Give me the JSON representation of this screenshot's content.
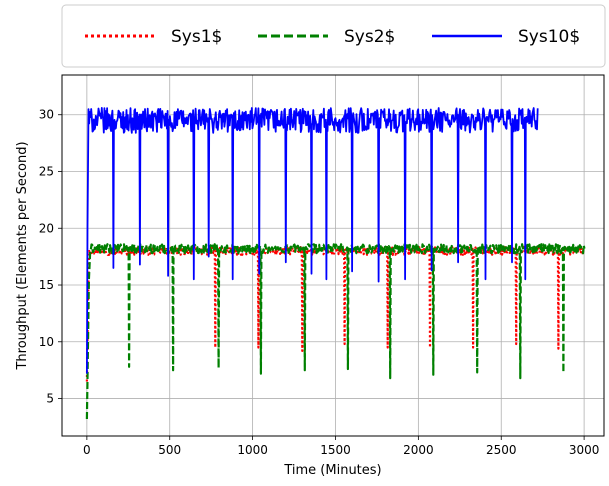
{
  "chart_data": {
    "type": "line",
    "title": "",
    "xlabel": "Time (Minutes)",
    "ylabel": "Throughput (Elements per Second)",
    "xlim": [
      -150,
      3120
    ],
    "ylim": [
      1.7,
      33.5
    ],
    "xticks": [
      0,
      500,
      1000,
      1500,
      2000,
      2500,
      3000
    ],
    "yticks": [
      5,
      10,
      15,
      20,
      25,
      30
    ],
    "grid": true,
    "legend_position": "top-center, above plot",
    "series": [
      {
        "name": "Sys1$",
        "color": "#ff0000",
        "style": "dotted",
        "baseline": 18.0,
        "noise": 0.35,
        "x_start": 0,
        "x_end": 3000,
        "startup": [
          [
            0,
            6.5
          ],
          [
            6,
            13.0
          ],
          [
            14,
            18.0
          ]
        ],
        "dips": [
          [
            775,
            9.5
          ],
          [
            1035,
            9.5
          ],
          [
            1300,
            9.2
          ],
          [
            1555,
            9.8
          ],
          [
            1815,
            9.5
          ],
          [
            2070,
            9.5
          ],
          [
            2330,
            9.5
          ],
          [
            2590,
            9.8
          ],
          [
            2845,
            9.4
          ]
        ]
      },
      {
        "name": "Sys2$",
        "color": "#008000",
        "style": "dashed",
        "baseline": 18.2,
        "noise": 0.4,
        "x_start": 0,
        "x_end": 3000,
        "startup": [
          [
            0,
            3.2
          ],
          [
            5,
            8.0
          ],
          [
            12,
            15.5
          ],
          [
            20,
            18.0
          ]
        ],
        "dips": [
          [
            255,
            7.8
          ],
          [
            520,
            7.5
          ],
          [
            795,
            7.7
          ],
          [
            1050,
            7.2
          ],
          [
            1315,
            7.5
          ],
          [
            1575,
            7.6
          ],
          [
            1830,
            6.8
          ],
          [
            2090,
            7.1
          ],
          [
            2355,
            7.3
          ],
          [
            2615,
            6.8
          ],
          [
            2875,
            7.3
          ]
        ]
      },
      {
        "name": "Sys10$",
        "color": "#0000ff",
        "style": "solid",
        "baseline": 29.5,
        "noise": 1.1,
        "x_start": 0,
        "x_end": 2720,
        "startup": [
          [
            0,
            7.2
          ],
          [
            4,
            20.0
          ],
          [
            10,
            30.5
          ]
        ],
        "dips": [
          [
            160,
            16.5
          ],
          [
            320,
            16.8
          ],
          [
            490,
            15.8
          ],
          [
            645,
            15.5
          ],
          [
            735,
            17.5
          ],
          [
            880,
            15.5
          ],
          [
            1040,
            16.0
          ],
          [
            1200,
            17.0
          ],
          [
            1355,
            16.0
          ],
          [
            1445,
            15.5
          ],
          [
            1600,
            16.2
          ],
          [
            1760,
            15.3
          ],
          [
            1920,
            15.5
          ],
          [
            2080,
            16.3
          ],
          [
            2240,
            17.0
          ],
          [
            2405,
            15.5
          ],
          [
            2565,
            17.0
          ],
          [
            2645,
            15.5
          ]
        ]
      }
    ]
  }
}
